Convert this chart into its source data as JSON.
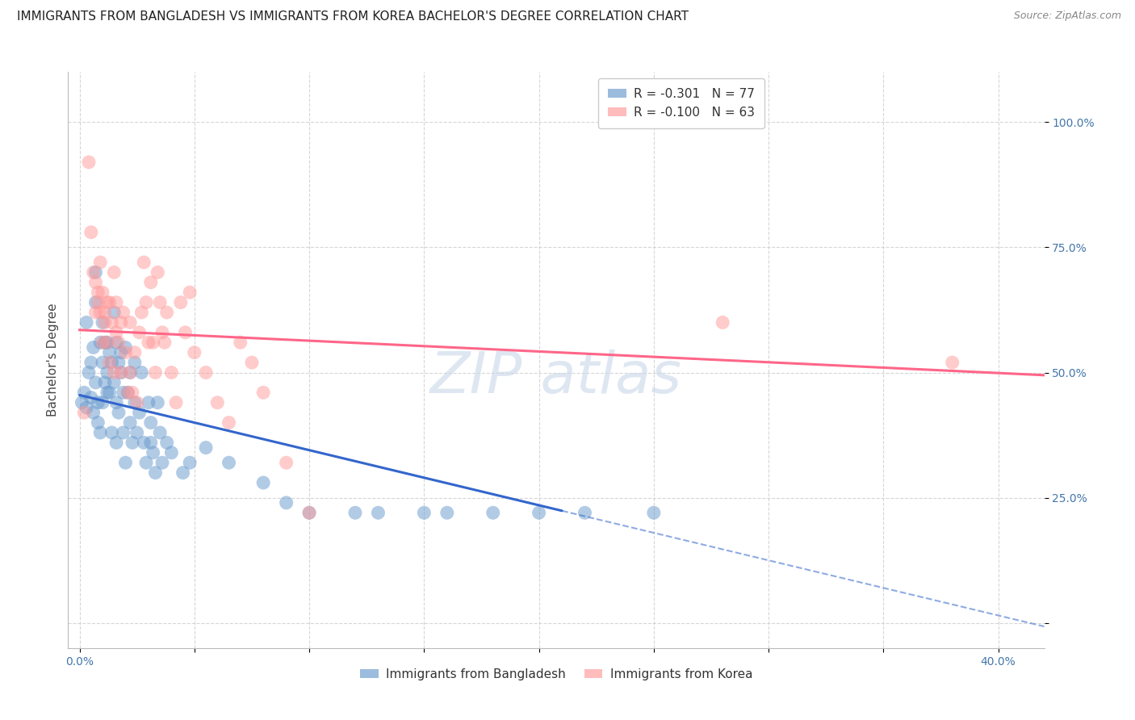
{
  "title": "IMMIGRANTS FROM BANGLADESH VS IMMIGRANTS FROM KOREA BACHELOR'S DEGREE CORRELATION CHART",
  "source": "Source: ZipAtlas.com",
  "ylabel": "Bachelor's Degree",
  "yticks": [
    0.0,
    0.25,
    0.5,
    0.75,
    1.0
  ],
  "ytick_labels": [
    "",
    "25.0%",
    "50.0%",
    "75.0%",
    "100.0%"
  ],
  "xticks": [
    0.0,
    0.05,
    0.1,
    0.15,
    0.2,
    0.25,
    0.3,
    0.35,
    0.4
  ],
  "xtick_labels": [
    "0.0%",
    "",
    "",
    "",
    "",
    "",
    "",
    "",
    "40.0%"
  ],
  "xlim": [
    -0.005,
    0.42
  ],
  "ylim": [
    -0.05,
    1.1
  ],
  "legend_entries": [
    {
      "label": "R = -0.301   N = 77",
      "color": "#6699CC"
    },
    {
      "label": "R = -0.100   N = 63",
      "color": "#FF9999"
    }
  ],
  "legend_label_blue": "Immigrants from Bangladesh",
  "legend_label_pink": "Immigrants from Korea",
  "watermark_color": "#CCDDEE",
  "background_color": "#FFFFFF",
  "grid_color": "#CCCCCC",
  "axis_color": "#4477AA",
  "blue_color": "#6699CC",
  "pink_color": "#FF9999",
  "blue_line_color": "#3366CC",
  "pink_line_color": "#FF6688",
  "blue_line_solid_end": 0.21,
  "blue_intercept": 0.455,
  "blue_slope": -1.1,
  "pink_intercept": 0.585,
  "pink_slope": -0.215,
  "blue_points": [
    [
      0.001,
      0.44
    ],
    [
      0.002,
      0.46
    ],
    [
      0.003,
      0.6
    ],
    [
      0.003,
      0.43
    ],
    [
      0.004,
      0.5
    ],
    [
      0.005,
      0.52
    ],
    [
      0.005,
      0.45
    ],
    [
      0.006,
      0.55
    ],
    [
      0.006,
      0.42
    ],
    [
      0.007,
      0.7
    ],
    [
      0.007,
      0.64
    ],
    [
      0.007,
      0.48
    ],
    [
      0.008,
      0.44
    ],
    [
      0.008,
      0.4
    ],
    [
      0.009,
      0.56
    ],
    [
      0.009,
      0.38
    ],
    [
      0.01,
      0.6
    ],
    [
      0.01,
      0.52
    ],
    [
      0.01,
      0.44
    ],
    [
      0.011,
      0.56
    ],
    [
      0.011,
      0.48
    ],
    [
      0.012,
      0.5
    ],
    [
      0.012,
      0.56
    ],
    [
      0.012,
      0.46
    ],
    [
      0.013,
      0.54
    ],
    [
      0.013,
      0.46
    ],
    [
      0.014,
      0.38
    ],
    [
      0.014,
      0.52
    ],
    [
      0.015,
      0.62
    ],
    [
      0.015,
      0.48
    ],
    [
      0.016,
      0.56
    ],
    [
      0.016,
      0.44
    ],
    [
      0.016,
      0.36
    ],
    [
      0.017,
      0.52
    ],
    [
      0.017,
      0.42
    ],
    [
      0.018,
      0.5
    ],
    [
      0.018,
      0.54
    ],
    [
      0.019,
      0.46
    ],
    [
      0.019,
      0.38
    ],
    [
      0.02,
      0.55
    ],
    [
      0.02,
      0.32
    ],
    [
      0.021,
      0.46
    ],
    [
      0.022,
      0.4
    ],
    [
      0.022,
      0.5
    ],
    [
      0.023,
      0.36
    ],
    [
      0.024,
      0.52
    ],
    [
      0.024,
      0.44
    ],
    [
      0.025,
      0.38
    ],
    [
      0.026,
      0.42
    ],
    [
      0.027,
      0.5
    ],
    [
      0.028,
      0.36
    ],
    [
      0.029,
      0.32
    ],
    [
      0.03,
      0.44
    ],
    [
      0.031,
      0.36
    ],
    [
      0.031,
      0.4
    ],
    [
      0.032,
      0.34
    ],
    [
      0.033,
      0.3
    ],
    [
      0.034,
      0.44
    ],
    [
      0.035,
      0.38
    ],
    [
      0.036,
      0.32
    ],
    [
      0.038,
      0.36
    ],
    [
      0.04,
      0.34
    ],
    [
      0.045,
      0.3
    ],
    [
      0.048,
      0.32
    ],
    [
      0.055,
      0.35
    ],
    [
      0.065,
      0.32
    ],
    [
      0.08,
      0.28
    ],
    [
      0.09,
      0.24
    ],
    [
      0.1,
      0.22
    ],
    [
      0.12,
      0.22
    ],
    [
      0.13,
      0.22
    ],
    [
      0.15,
      0.22
    ],
    [
      0.16,
      0.22
    ],
    [
      0.18,
      0.22
    ],
    [
      0.2,
      0.22
    ],
    [
      0.22,
      0.22
    ],
    [
      0.25,
      0.22
    ]
  ],
  "pink_points": [
    [
      0.002,
      0.42
    ],
    [
      0.004,
      0.92
    ],
    [
      0.005,
      0.78
    ],
    [
      0.006,
      0.7
    ],
    [
      0.007,
      0.68
    ],
    [
      0.007,
      0.62
    ],
    [
      0.008,
      0.64
    ],
    [
      0.008,
      0.66
    ],
    [
      0.009,
      0.62
    ],
    [
      0.009,
      0.72
    ],
    [
      0.01,
      0.66
    ],
    [
      0.01,
      0.56
    ],
    [
      0.011,
      0.6
    ],
    [
      0.011,
      0.62
    ],
    [
      0.012,
      0.56
    ],
    [
      0.012,
      0.64
    ],
    [
      0.013,
      0.64
    ],
    [
      0.013,
      0.52
    ],
    [
      0.014,
      0.6
    ],
    [
      0.015,
      0.5
    ],
    [
      0.015,
      0.7
    ],
    [
      0.016,
      0.58
    ],
    [
      0.016,
      0.64
    ],
    [
      0.017,
      0.56
    ],
    [
      0.018,
      0.6
    ],
    [
      0.018,
      0.5
    ],
    [
      0.019,
      0.62
    ],
    [
      0.02,
      0.54
    ],
    [
      0.021,
      0.46
    ],
    [
      0.022,
      0.6
    ],
    [
      0.022,
      0.5
    ],
    [
      0.023,
      0.46
    ],
    [
      0.024,
      0.54
    ],
    [
      0.025,
      0.44
    ],
    [
      0.026,
      0.58
    ],
    [
      0.027,
      0.62
    ],
    [
      0.028,
      0.72
    ],
    [
      0.029,
      0.64
    ],
    [
      0.03,
      0.56
    ],
    [
      0.031,
      0.68
    ],
    [
      0.032,
      0.56
    ],
    [
      0.033,
      0.5
    ],
    [
      0.034,
      0.7
    ],
    [
      0.035,
      0.64
    ],
    [
      0.036,
      0.58
    ],
    [
      0.037,
      0.56
    ],
    [
      0.038,
      0.62
    ],
    [
      0.04,
      0.5
    ],
    [
      0.042,
      0.44
    ],
    [
      0.044,
      0.64
    ],
    [
      0.046,
      0.58
    ],
    [
      0.048,
      0.66
    ],
    [
      0.05,
      0.54
    ],
    [
      0.055,
      0.5
    ],
    [
      0.06,
      0.44
    ],
    [
      0.065,
      0.4
    ],
    [
      0.07,
      0.56
    ],
    [
      0.075,
      0.52
    ],
    [
      0.08,
      0.46
    ],
    [
      0.09,
      0.32
    ],
    [
      0.1,
      0.22
    ],
    [
      0.28,
      0.6
    ],
    [
      0.38,
      0.52
    ]
  ],
  "title_fontsize": 11,
  "source_fontsize": 9,
  "axis_label_fontsize": 11,
  "tick_fontsize": 10,
  "legend_fontsize": 11
}
